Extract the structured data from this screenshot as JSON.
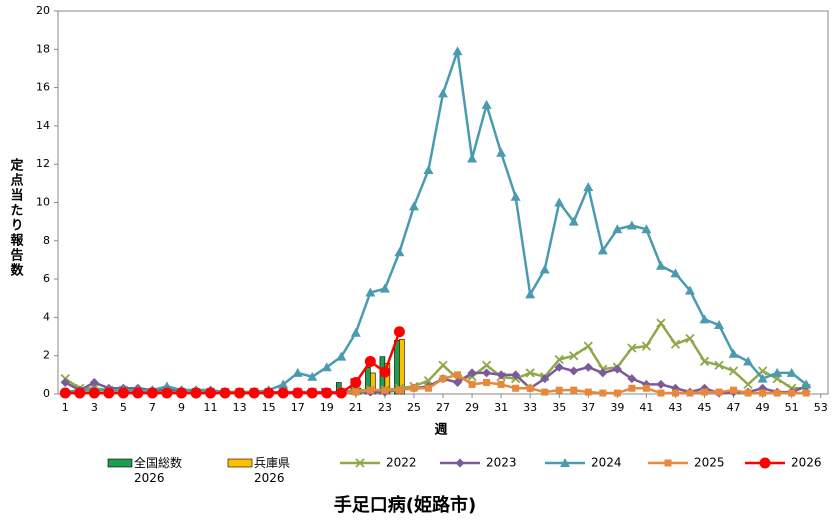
{
  "chart_data": {
    "type": "line",
    "title": "手足口病(姫路市)",
    "x_label": "週",
    "y_label": "定点当たり報告数",
    "x": [
      1,
      2,
      3,
      4,
      5,
      6,
      7,
      8,
      9,
      10,
      11,
      12,
      13,
      14,
      15,
      16,
      17,
      18,
      19,
      20,
      21,
      22,
      23,
      24,
      25,
      26,
      27,
      28,
      29,
      30,
      31,
      32,
      33,
      34,
      35,
      36,
      37,
      38,
      39,
      40,
      41,
      42,
      43,
      44,
      45,
      46,
      47,
      48,
      49,
      50,
      51,
      52,
      53
    ],
    "xlim": [
      0.5,
      53.5
    ],
    "xticks": [
      1,
      3,
      5,
      7,
      9,
      11,
      13,
      15,
      17,
      19,
      21,
      23,
      25,
      27,
      29,
      31,
      33,
      35,
      37,
      39,
      41,
      43,
      45,
      47,
      49,
      51,
      53
    ],
    "ylim": [
      0,
      20
    ],
    "yticks": [
      0,
      2,
      4,
      6,
      8,
      10,
      12,
      14,
      16,
      18,
      20
    ],
    "grid": false,
    "legend": "bottom",
    "series": [
      {
        "name": "全国総数 2026",
        "type": "bar",
        "color": "#1e9e50",
        "values": [
          0.05,
          0.05,
          0.05,
          0.05,
          0.05,
          0.05,
          0.05,
          0.05,
          0.05,
          0.05,
          0.05,
          0.05,
          0.05,
          0.05,
          0.05,
          0.05,
          0.1,
          0.2,
          0.3,
          0.6,
          0.8,
          1.4,
          1.95,
          2.8,
          null,
          null,
          null,
          null,
          null,
          null,
          null,
          null,
          null,
          null,
          null,
          null,
          null,
          null,
          null,
          null,
          null,
          null,
          null,
          null,
          null,
          null,
          null,
          null,
          null,
          null,
          null,
          null,
          null
        ]
      },
      {
        "name": "兵庫県 2026",
        "type": "bar",
        "color": "#ffc000",
        "values": [
          0.05,
          0.05,
          0.05,
          0.05,
          0.05,
          0.05,
          0.05,
          0.05,
          0.05,
          0.05,
          0.05,
          0.05,
          0.05,
          0.05,
          0.05,
          0.05,
          0.05,
          0.1,
          0.1,
          0.1,
          0.3,
          1.1,
          1.6,
          2.85,
          null,
          null,
          null,
          null,
          null,
          null,
          null,
          null,
          null,
          null,
          null,
          null,
          null,
          null,
          null,
          null,
          null,
          null,
          null,
          null,
          null,
          null,
          null,
          null,
          null,
          null,
          null,
          null,
          null
        ]
      },
      {
        "name": "2022",
        "type": "line",
        "marker": "x",
        "color": "#8fa84a",
        "values": [
          0.8,
          0.3,
          0.3,
          0.2,
          0.2,
          0.1,
          0.1,
          0.1,
          0.1,
          0.1,
          0.1,
          0.1,
          0.1,
          0.1,
          0.1,
          0.1,
          0.1,
          0.1,
          0.1,
          0.1,
          0.2,
          0.2,
          0.2,
          0.3,
          0.4,
          0.7,
          1.5,
          0.8,
          0.9,
          1.5,
          0.9,
          0.8,
          1.1,
          0.9,
          1.8,
          2.0,
          2.5,
          1.3,
          1.4,
          2.4,
          2.5,
          3.7,
          2.6,
          2.9,
          1.7,
          1.5,
          1.2,
          0.5,
          1.2,
          0.8,
          0.3,
          0.3,
          null
        ]
      },
      {
        "name": "2023",
        "type": "line",
        "marker": "diamond",
        "color": "#7a5a9a",
        "values": [
          0.6,
          0.2,
          0.6,
          0.3,
          0.3,
          0.3,
          0.2,
          0.2,
          0.2,
          0.2,
          0.2,
          0.1,
          0.1,
          0.1,
          0.1,
          0.1,
          0.1,
          0.1,
          0.1,
          0.1,
          0.1,
          0.1,
          0.1,
          0.2,
          0.3,
          0.4,
          0.8,
          0.6,
          1.1,
          1.1,
          1.0,
          1.0,
          0.3,
          0.8,
          1.4,
          1.2,
          1.4,
          1.1,
          1.3,
          0.8,
          0.5,
          0.5,
          0.3,
          0.1,
          0.3,
          0.05,
          0.1,
          0.1,
          0.3,
          0.1,
          0.1,
          0.4,
          null
        ]
      },
      {
        "name": "2024",
        "type": "line",
        "marker": "triangle",
        "color": "#4a9bb0",
        "values": [
          0.1,
          0.2,
          0.2,
          0.2,
          0.2,
          0.2,
          0.2,
          0.4,
          0.2,
          0.2,
          0.2,
          0.1,
          0.1,
          0.1,
          0.2,
          0.5,
          1.1,
          0.9,
          1.4,
          1.95,
          3.2,
          5.3,
          5.5,
          7.4,
          9.8,
          11.7,
          15.7,
          17.9,
          12.3,
          15.1,
          12.6,
          10.3,
          5.2,
          6.5,
          10.0,
          9.0,
          10.8,
          7.5,
          8.6,
          8.8,
          8.6,
          6.7,
          6.3,
          5.4,
          3.9,
          3.6,
          2.1,
          1.7,
          0.8,
          1.1,
          1.1,
          0.5,
          null
        ]
      },
      {
        "name": "2025",
        "type": "line",
        "marker": "square",
        "color": "#e8883a",
        "values": [
          0.05,
          0.05,
          0.05,
          0.05,
          0.05,
          0.05,
          0.05,
          0.05,
          0.05,
          0.05,
          0.05,
          0.05,
          0.05,
          0.05,
          0.05,
          0.05,
          0.05,
          0.05,
          0.05,
          0.05,
          0.1,
          0.2,
          0.2,
          0.2,
          0.3,
          0.3,
          0.8,
          1.0,
          0.5,
          0.6,
          0.5,
          0.3,
          0.3,
          0.1,
          0.2,
          0.2,
          0.1,
          0.05,
          0.05,
          0.3,
          0.3,
          0.05,
          0.05,
          0.05,
          0.1,
          0.1,
          0.2,
          0.05,
          0.05,
          0.05,
          0.05,
          0.05,
          null
        ]
      },
      {
        "name": "2026",
        "type": "line",
        "marker": "circle",
        "color": "#ff0000",
        "values": [
          0.05,
          0.05,
          0.05,
          0.05,
          0.05,
          0.05,
          0.05,
          0.05,
          0.05,
          0.05,
          0.05,
          0.05,
          0.05,
          0.05,
          0.05,
          0.05,
          0.05,
          0.05,
          0.05,
          0.05,
          0.6,
          1.7,
          1.15,
          3.25,
          null,
          null,
          null,
          null,
          null,
          null,
          null,
          null,
          null,
          null,
          null,
          null,
          null,
          null,
          null,
          null,
          null,
          null,
          null,
          null,
          null,
          null,
          null,
          null,
          null,
          null,
          null,
          null,
          null
        ]
      }
    ]
  }
}
